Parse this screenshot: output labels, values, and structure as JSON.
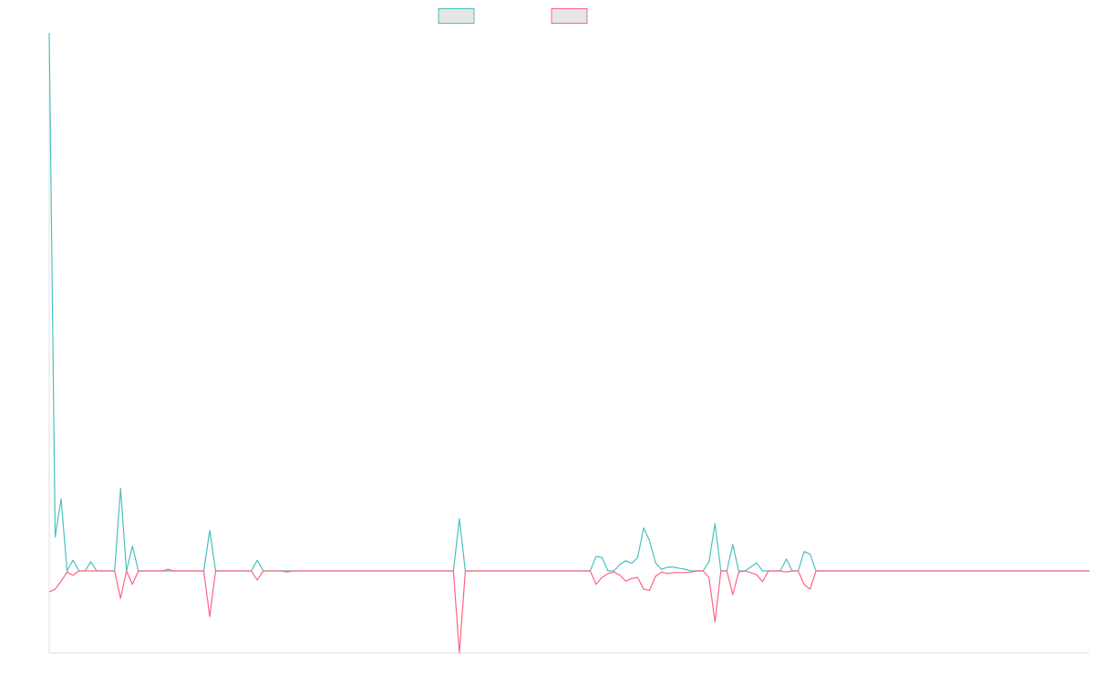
{
  "chart_data": {
    "type": "line",
    "series": [
      {
        "color": "#4bc0c0",
        "values": [
          100,
          6.3,
          13.4,
          0,
          2,
          0,
          0,
          1.7,
          0,
          0,
          0,
          0,
          15.3,
          0,
          4.6,
          0,
          0,
          0,
          0,
          0,
          0,
          0,
          0,
          0,
          0,
          0,
          0,
          7.5,
          0,
          0,
          0,
          0,
          0,
          0,
          0,
          2,
          0,
          0,
          0,
          0,
          0,
          0,
          0,
          0,
          0,
          0,
          0,
          0,
          0,
          0,
          0,
          0,
          0,
          0,
          0,
          0,
          0,
          0,
          0,
          0,
          0,
          0,
          0,
          0,
          0,
          0,
          0,
          0,
          0,
          9.7,
          0,
          0,
          0,
          0,
          0,
          0,
          0,
          0,
          0,
          0,
          0,
          0,
          0,
          0,
          0,
          0,
          0,
          0,
          0,
          0,
          0,
          0,
          2.7,
          2.5,
          0,
          0,
          1.2,
          1.9,
          1.4,
          2.5,
          8,
          5.6,
          1.5,
          0.3,
          0.7,
          0.7,
          0.5,
          0.3,
          0,
          0,
          0,
          1.7,
          8.8,
          0,
          0,
          4.9,
          0,
          0,
          0.7,
          1.5,
          0,
          0,
          0,
          0,
          2.2,
          0,
          0,
          3.6,
          3.1,
          0,
          0,
          0,
          0,
          0,
          0,
          0,
          0,
          0,
          0,
          0,
          0,
          0,
          0,
          0,
          0,
          0,
          0,
          0,
          0,
          0,
          0,
          0,
          0,
          0,
          0,
          0,
          0,
          0,
          0,
          0,
          0,
          0,
          0,
          0,
          0,
          0,
          0,
          0,
          0,
          0,
          0,
          0,
          0,
          0,
          0,
          0
        ]
      },
      {
        "color": "#ff6384",
        "values": [
          -3.9,
          -3.4,
          -1.9,
          -0.2,
          -0.8,
          0,
          0,
          0,
          0,
          0,
          0,
          0,
          -5.1,
          0,
          -2.5,
          0,
          0,
          0,
          0,
          0,
          0.3,
          0,
          0,
          0,
          0,
          0,
          0,
          -8.5,
          0,
          0,
          0,
          0,
          0,
          0,
          0,
          -1.7,
          0,
          0,
          0,
          0,
          -0.2,
          0,
          0,
          0,
          0,
          0,
          0,
          0,
          0,
          0,
          0,
          0,
          0,
          0,
          0,
          0,
          0,
          0,
          0,
          0,
          0,
          0,
          0,
          0,
          0,
          0,
          0,
          0,
          0,
          -15.25,
          0,
          0,
          0,
          0,
          0,
          0,
          0,
          0,
          0,
          0,
          0,
          0,
          0,
          0,
          0,
          0,
          0,
          0,
          0,
          0,
          0,
          0,
          -2.5,
          -1.2,
          -0.5,
          -0.2,
          -0.8,
          -1.9,
          -1.4,
          -1.2,
          -3.4,
          -3.6,
          -1,
          -0.2,
          -0.5,
          -0.3,
          -0.3,
          -0.3,
          -0.2,
          0,
          0,
          -1.2,
          -9.5,
          0,
          0,
          -4.4,
          -0.2,
          0,
          -0.3,
          -0.7,
          -2,
          0,
          0,
          0,
          -0.2,
          0,
          0,
          -2.5,
          -3.4,
          0,
          0,
          0,
          0,
          0,
          0,
          0,
          0,
          0,
          0,
          0,
          0,
          0,
          0,
          0,
          0,
          0,
          0,
          0,
          0,
          0,
          0,
          0,
          0,
          0,
          0,
          0,
          0,
          0,
          0,
          0,
          0,
          0,
          0,
          0,
          0,
          0,
          0,
          0,
          0,
          0,
          0,
          0,
          0,
          0,
          0,
          0
        ]
      }
    ],
    "ylim": [
      -15.25,
      100
    ],
    "legend": "top"
  }
}
